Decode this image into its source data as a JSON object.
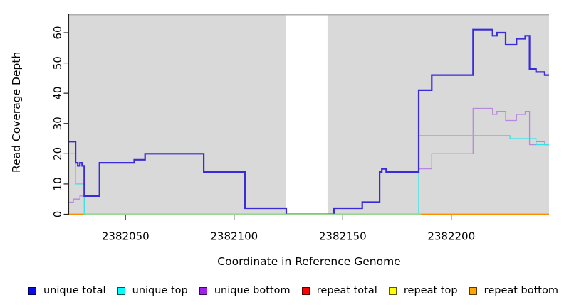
{
  "figure": {
    "y_axis_title": "Read Coverage Depth",
    "x_axis_title": "Coordinate in Reference Genome"
  },
  "chart_data": {
    "type": "line",
    "subtype": "step-after",
    "title": "",
    "xlabel": "Coordinate in Reference Genome",
    "ylabel": "Read Coverage Depth",
    "xlim": [
      2382024,
      2382245
    ],
    "ylim": [
      0,
      66
    ],
    "x_ticks": [
      2382050,
      2382100,
      2382150,
      2382200
    ],
    "y_ticks": [
      0,
      10,
      20,
      30,
      40,
      50,
      60
    ],
    "grid": false,
    "legend_position": "bottom",
    "panel_bg": "#D9D9D9",
    "panel_top_border": "#AFAFAF",
    "gap_region": {
      "x_start": 2382124,
      "x_end": 2382143,
      "fill": "#FFFFFF"
    },
    "zero_line_blend": {
      "x_start": 2382031,
      "x_end": 2382186,
      "color": "#98D78F"
    },
    "series": [
      {
        "name": "unique total",
        "color": "#3A2BD8",
        "line_width": 2.2,
        "points": [
          [
            2382024,
            24
          ],
          [
            2382027,
            17
          ],
          [
            2382028,
            16
          ],
          [
            2382029,
            17
          ],
          [
            2382030,
            16
          ],
          [
            2382031,
            6
          ],
          [
            2382038,
            17
          ],
          [
            2382054,
            18
          ],
          [
            2382059,
            20
          ],
          [
            2382086,
            14
          ],
          [
            2382105,
            2
          ],
          [
            2382124,
            0
          ],
          [
            2382146,
            2
          ],
          [
            2382159,
            4
          ],
          [
            2382167,
            14
          ],
          [
            2382168,
            15
          ],
          [
            2382170,
            14
          ],
          [
            2382185,
            41
          ],
          [
            2382191,
            46
          ],
          [
            2382210,
            61
          ],
          [
            2382219,
            59
          ],
          [
            2382221,
            60
          ],
          [
            2382225,
            56
          ],
          [
            2382230,
            58
          ],
          [
            2382234,
            59
          ],
          [
            2382236,
            48
          ],
          [
            2382239,
            47
          ],
          [
            2382243,
            46
          ],
          [
            2382245,
            46
          ]
        ]
      },
      {
        "name": "unique top",
        "color": "#33E3E6",
        "line_width": 1.3,
        "points": [
          [
            2382024,
            20
          ],
          [
            2382027,
            10
          ],
          [
            2382031,
            0
          ],
          [
            2382185,
            26
          ],
          [
            2382227,
            25
          ],
          [
            2382239,
            23
          ],
          [
            2382245,
            23
          ]
        ]
      },
      {
        "name": "unique bottom",
        "color": "#B689DE",
        "line_width": 1.3,
        "points": [
          [
            2382024,
            4
          ],
          [
            2382026,
            5
          ],
          [
            2382029,
            6
          ],
          [
            2382038,
            17
          ],
          [
            2382054,
            18
          ],
          [
            2382059,
            20
          ],
          [
            2382086,
            14
          ],
          [
            2382105,
            2
          ],
          [
            2382124,
            0
          ],
          [
            2382146,
            2
          ],
          [
            2382159,
            4
          ],
          [
            2382167,
            14
          ],
          [
            2382168,
            15
          ],
          [
            2382170,
            14
          ],
          [
            2382185,
            15
          ],
          [
            2382191,
            20
          ],
          [
            2382210,
            35
          ],
          [
            2382219,
            33
          ],
          [
            2382221,
            34
          ],
          [
            2382225,
            31
          ],
          [
            2382230,
            33
          ],
          [
            2382234,
            34
          ],
          [
            2382236,
            23
          ],
          [
            2382239,
            24
          ],
          [
            2382243,
            23
          ],
          [
            2382245,
            23
          ]
        ]
      },
      {
        "name": "repeat total",
        "color": "#E00000",
        "line_width": 1.3,
        "points": [
          [
            2382024,
            0
          ],
          [
            2382245,
            0
          ]
        ]
      },
      {
        "name": "repeat top",
        "color": "#F5F500",
        "line_width": 1.3,
        "points": [
          [
            2382024,
            0
          ],
          [
            2382245,
            0
          ]
        ]
      },
      {
        "name": "repeat bottom",
        "color": "#FF8C00",
        "line_width": 1.6,
        "points": [
          [
            2382024,
            0
          ],
          [
            2382245,
            0
          ]
        ]
      }
    ]
  },
  "legend": {
    "items": [
      {
        "label": "unique total",
        "fill": "#0A0AEE",
        "border": "rgba(0,0,0,0.65)"
      },
      {
        "label": "unique top",
        "fill": "#00FFFF",
        "border": "rgba(0,0,0,0.65)"
      },
      {
        "label": "unique bottom",
        "fill": "#A020F0",
        "border": "rgba(0,0,0,0.65)"
      },
      {
        "label": "repeat total",
        "fill": "#FF0000",
        "border": "rgba(0,0,0,0.65)"
      },
      {
        "label": "repeat top",
        "fill": "#FFFF00",
        "border": "rgba(0,0,0,0.65)"
      },
      {
        "label": "repeat bottom",
        "fill": "#FFA500",
        "border": "rgba(0,0,0,0.65)"
      }
    ]
  }
}
